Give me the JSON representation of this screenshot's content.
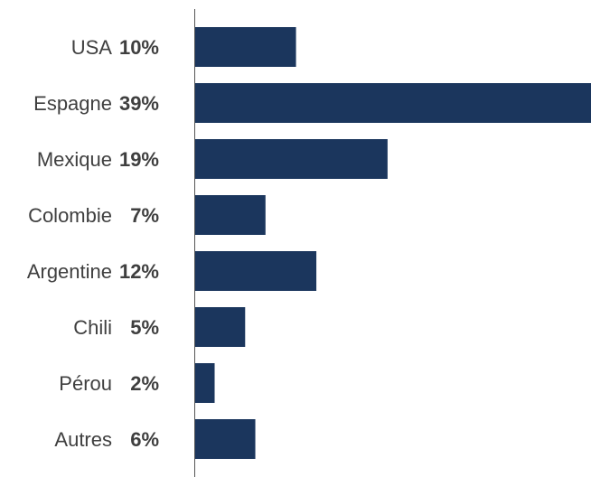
{
  "chart_data": {
    "type": "bar",
    "orientation": "horizontal",
    "categories": [
      "USA",
      "Espagne",
      "Mexique",
      "Colombie",
      "Argentine",
      "Chili",
      "Pérou",
      "Autres"
    ],
    "values": [
      10,
      39,
      19,
      7,
      12,
      5,
      2,
      6
    ],
    "value_labels": [
      "10%",
      "39%",
      "19%",
      "7%",
      "12%",
      "5%",
      "2%",
      "6%"
    ],
    "unit": "%",
    "title": "",
    "xlabel": "",
    "ylabel": "",
    "xlim": [
      0,
      39
    ],
    "grid": false,
    "legend": "none",
    "bar_color": "#1b365d",
    "axis_color": "#555555",
    "text_color": "#3f3f3f"
  }
}
